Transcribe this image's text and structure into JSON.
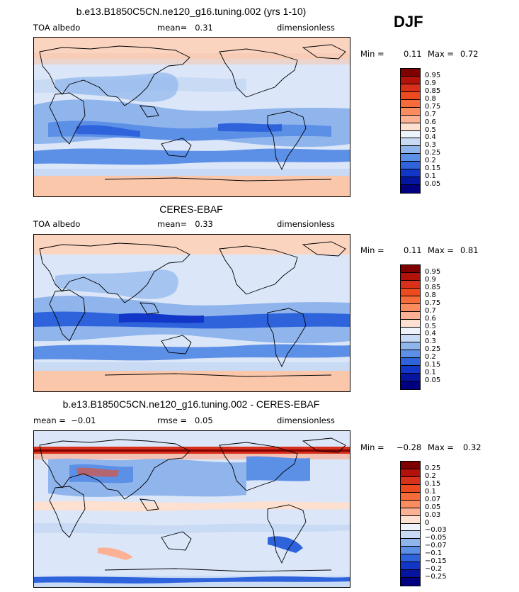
{
  "season": "DJF",
  "panels": [
    {
      "title": "b.e13.B1850C5CN.ne120_g16.tuning.002 (yrs 1-10)",
      "left_label": "TOA albedo",
      "mid_label": "mean=   0.31",
      "right_label": "dimensionless",
      "min_label": "Min =",
      "min_value": "0.11",
      "max_label": "Max =",
      "max_value": "0.72",
      "scale": "albedo"
    },
    {
      "title": "CERES-EBAF",
      "left_label": "TOA albedo",
      "mid_label": "mean=   0.33",
      "right_label": "dimensionless",
      "min_label": "Min =",
      "min_value": "0.11",
      "max_label": "Max =",
      "max_value": "0.81",
      "scale": "albedo"
    },
    {
      "title": "b.e13.B1850C5CN.ne120_g16.tuning.002 - CERES-EBAF",
      "left_label": "mean =  −0.01",
      "mid_label": "rmse =   0.05",
      "right_label": "dimensionless",
      "min_label": "Min =",
      "min_value": "−0.28",
      "max_label": "Max =",
      "max_value": "0.32",
      "scale": "diff"
    }
  ],
  "colorbars": {
    "albedo": {
      "labels": [
        "0.95",
        "0.9",
        "0.85",
        "0.8",
        "0.75",
        "0.7",
        "0.6",
        "0.5",
        "0.4",
        "0.3",
        "0.25",
        "0.2",
        "0.15",
        "0.1",
        "0.05"
      ],
      "colors": [
        "#7f0000",
        "#b3120a",
        "#d8301a",
        "#ee4a20",
        "#f66b3a",
        "#fb8c60",
        "#fcb195",
        "#fde0cf",
        "#eef3fb",
        "#c8daf4",
        "#8fb5ec",
        "#5c8fe6",
        "#2f63dc",
        "#1236c8",
        "#0615a0",
        "#000080"
      ]
    },
    "diff": {
      "labels": [
        "0.25",
        "0.2",
        "0.15",
        "0.1",
        "0.07",
        "0.05",
        "0.03",
        "0",
        "−0.03",
        "−0.05",
        "−0.07",
        "−0.1",
        "−0.15",
        "−0.2",
        "−0.25"
      ],
      "colors": [
        "#7f0000",
        "#b3120a",
        "#d8301a",
        "#ee4a20",
        "#f66b3a",
        "#fb8c60",
        "#fcb195",
        "#fde0cf",
        "#eef3fb",
        "#c8daf4",
        "#8fb5ec",
        "#5c8fe6",
        "#2f63dc",
        "#1236c8",
        "#0615a0",
        "#000080"
      ]
    }
  }
}
